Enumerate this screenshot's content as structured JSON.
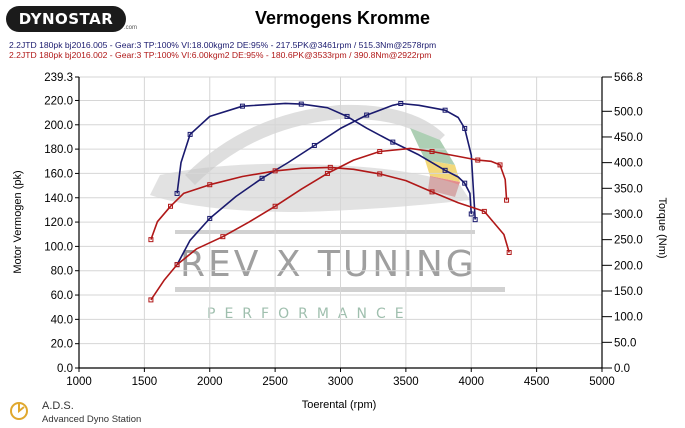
{
  "brand": {
    "logo_text": "DYNOSTAR",
    "logo_suffix": ".com"
  },
  "footer": {
    "name": "A.D.S.",
    "subtitle": "Advanced Dyno Station"
  },
  "watermark": {
    "brand": "REV X TUNING",
    "tagline": "PERFORMANCE"
  },
  "runs": [
    {
      "text": "2.2JTD 180pk bj2016.005 - Gear:3 TP:100% VI:18.00kgm2 DE:95%   - 217.5PK@3461rpm / 515.3Nm@2578rpm",
      "color": "#1a1a6e"
    },
    {
      "text": "2.2JTD 180pk bj2016.002 - Gear:3 TP:100% VI:6.00kgm2 DE:95%   - 180.6PK@3533rpm / 390.8Nm@2922rpm",
      "color": "#b01818"
    }
  ],
  "chart_data": {
    "type": "line",
    "title": "Vermogens Kromme",
    "xlabel": "Toerental (rpm)",
    "ylabel_left": "Motor Vermogen (pk)",
    "ylabel_right": "Torque (Nm)",
    "xlim": [
      1000,
      5000
    ],
    "ylim_left": [
      0,
      239.3
    ],
    "ylim_right": [
      0,
      566.8
    ],
    "x_ticks": [
      "1000",
      "1500",
      "2000",
      "2500",
      "3000",
      "3500",
      "4000",
      "4500",
      "5000"
    ],
    "y_ticks_left": [
      "0.0",
      "20.0",
      "40.0",
      "60.0",
      "80.0",
      "100.0",
      "120.0",
      "140.0",
      "160.0",
      "180.0",
      "200.0",
      "220.0",
      "239.3"
    ],
    "y_ticks_right": [
      "0.0",
      "50.0",
      "100.0",
      "150.0",
      "200.0",
      "250.0",
      "300.0",
      "350.0",
      "400.0",
      "450.0",
      "500.0",
      "566.8"
    ],
    "grid": true,
    "series": [
      {
        "axis": "left",
        "color": "#1a1a6e",
        "points": [
          [
            1750,
            85
          ],
          [
            1850,
            105
          ],
          [
            2000,
            123
          ],
          [
            2200,
            141
          ],
          [
            2400,
            156
          ],
          [
            2600,
            169
          ],
          [
            2800,
            183
          ],
          [
            3000,
            197
          ],
          [
            3200,
            208
          ],
          [
            3400,
            216
          ],
          [
            3461,
            217.5
          ],
          [
            3600,
            216
          ],
          [
            3800,
            212
          ],
          [
            3900,
            206
          ],
          [
            3950,
            197
          ],
          [
            4000,
            175
          ],
          [
            4030,
            122
          ]
        ]
      },
      {
        "axis": "right",
        "color": "#1a1a6e",
        "points": [
          [
            1750,
            340
          ],
          [
            1780,
            400
          ],
          [
            1850,
            455
          ],
          [
            2000,
            490
          ],
          [
            2250,
            510
          ],
          [
            2578,
            515.3
          ],
          [
            2700,
            514
          ],
          [
            2900,
            507
          ],
          [
            3050,
            490
          ],
          [
            3200,
            467
          ],
          [
            3400,
            440
          ],
          [
            3600,
            415
          ],
          [
            3800,
            385
          ],
          [
            3900,
            372
          ],
          [
            3950,
            360
          ],
          [
            3990,
            340
          ],
          [
            4000,
            300
          ]
        ]
      },
      {
        "axis": "left",
        "color": "#b01818",
        "points": [
          [
            1550,
            56
          ],
          [
            1650,
            72
          ],
          [
            1750,
            85
          ],
          [
            1900,
            98
          ],
          [
            2100,
            108
          ],
          [
            2300,
            120
          ],
          [
            2500,
            133
          ],
          [
            2700,
            147
          ],
          [
            2900,
            160
          ],
          [
            3100,
            171
          ],
          [
            3300,
            178
          ],
          [
            3533,
            180.6
          ],
          [
            3700,
            178
          ],
          [
            3900,
            174
          ],
          [
            4050,
            171
          ],
          [
            4150,
            170
          ],
          [
            4220,
            167
          ],
          [
            4260,
            155
          ],
          [
            4270,
            138
          ]
        ]
      },
      {
        "axis": "right",
        "color": "#b01818",
        "points": [
          [
            1550,
            250
          ],
          [
            1600,
            285
          ],
          [
            1700,
            315
          ],
          [
            1800,
            340
          ],
          [
            2000,
            357
          ],
          [
            2250,
            373
          ],
          [
            2500,
            384
          ],
          [
            2700,
            389
          ],
          [
            2922,
            390.8
          ],
          [
            3100,
            387
          ],
          [
            3300,
            378
          ],
          [
            3500,
            365
          ],
          [
            3700,
            343
          ],
          [
            3900,
            322
          ],
          [
            4100,
            305
          ],
          [
            4250,
            260
          ],
          [
            4290,
            225
          ]
        ]
      }
    ]
  }
}
